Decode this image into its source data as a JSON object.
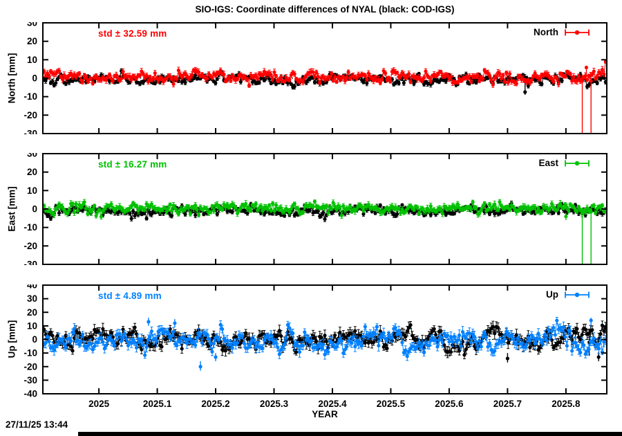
{
  "title": "SIO-IGS: Coordinate differences of NYAL (black: COD-IGS)",
  "timestamp": "27/11/25 13:44",
  "xlabel": "YEAR",
  "colors": {
    "north": "#ff0000",
    "east": "#00c000",
    "up": "#0080ff",
    "reference": "#000000",
    "frame": "#000000"
  },
  "chart_data": [
    {
      "type": "scatter-errorbar",
      "id": "north",
      "std_label": "std ± 32.59 mm",
      "std_mm": 32.59,
      "legend_label": "North",
      "ylabel": "North [mm]",
      "ylim": [
        -30,
        30
      ],
      "yticks": [
        -30,
        -20,
        -10,
        0,
        10,
        20,
        30
      ],
      "xlim": [
        2024.904,
        2025.87
      ],
      "xticks": [
        2025,
        2025.1,
        2025.2,
        2025.3,
        2025.4,
        2025.5,
        2025.6,
        2025.7,
        2025.8
      ],
      "zero_line": true,
      "series": [
        {
          "name": "COD-IGS",
          "color": "#000000",
          "seed": 101,
          "n": 335,
          "mean": -0.5,
          "std": 1.3,
          "rho": 0.4,
          "err": 1.1,
          "spike_prob": 0.015,
          "spike_scale": 2.2,
          "wave": [
            [
              0.4,
              31,
              0.7
            ]
          ],
          "outliers": [
            {
              "x": 2025.73,
              "y": -7.5,
              "lo": -9,
              "hi": -0.5
            }
          ]
        },
        {
          "name": "SIO-IGS",
          "color": "#ff0000",
          "seed": 202,
          "n": 335,
          "mean": 0.5,
          "std": 1.7,
          "rho": 0.35,
          "err": 1.3,
          "spike_prob": 0.02,
          "spike_scale": 2.1,
          "wave": [
            [
              0.4,
              23,
              2.1
            ]
          ],
          "outliers": [
            {
              "x": 2025.828,
              "y": -1.5,
              "lo": -45,
              "hi": 0.5
            },
            {
              "x": 2025.843,
              "y": -1.5,
              "lo": -45,
              "hi": 0.5
            },
            {
              "x": 2025.835,
              "y": 5.8,
              "lo": 1.5,
              "hi": 6.8
            }
          ]
        }
      ]
    },
    {
      "type": "scatter-errorbar",
      "id": "east",
      "std_label": "std ± 16.27 mm",
      "std_mm": 16.27,
      "legend_label": "East",
      "ylabel": "East [mm]",
      "ylim": [
        -30,
        30
      ],
      "yticks": [
        -30,
        -20,
        -10,
        0,
        10,
        20,
        30
      ],
      "xlim": [
        2024.904,
        2025.87
      ],
      "xticks": [
        2025,
        2025.1,
        2025.2,
        2025.3,
        2025.4,
        2025.5,
        2025.6,
        2025.7,
        2025.8
      ],
      "zero_line": true,
      "series": [
        {
          "name": "COD-IGS",
          "color": "#000000",
          "seed": 303,
          "n": 335,
          "mean": -0.8,
          "std": 1.3,
          "rho": 0.4,
          "err": 1.1,
          "spike_prob": 0.015,
          "spike_scale": 2.0,
          "wave": [
            [
              0.3,
              27,
              1.4
            ]
          ],
          "outliers": []
        },
        {
          "name": "SIO-IGS",
          "color": "#00c000",
          "seed": 404,
          "n": 335,
          "mean": 0.4,
          "std": 1.6,
          "rho": 0.35,
          "err": 1.3,
          "spike_prob": 0.02,
          "spike_scale": 2.0,
          "wave": [
            [
              0.4,
              19,
              0.3
            ]
          ],
          "outliers": [
            {
              "x": 2025.828,
              "y": -1.5,
              "lo": -45,
              "hi": 0.5
            },
            {
              "x": 2025.843,
              "y": -1.5,
              "lo": -45,
              "hi": 0.5
            },
            {
              "x": 2025.8,
              "y": -4,
              "lo": -6,
              "hi": -2
            }
          ]
        }
      ]
    },
    {
      "type": "scatter-errorbar",
      "id": "up",
      "std_label": "std ± 4.89 mm",
      "std_mm": 4.89,
      "legend_label": "Up",
      "ylabel": "Up [mm]",
      "ylim": [
        -40,
        40
      ],
      "yticks": [
        -40,
        -30,
        -20,
        -10,
        0,
        10,
        20,
        30,
        40
      ],
      "xlim": [
        2024.904,
        2025.87
      ],
      "xticks": [
        2025,
        2025.1,
        2025.2,
        2025.3,
        2025.4,
        2025.5,
        2025.6,
        2025.7,
        2025.8
      ],
      "xtick_text": [
        "2025",
        "2025.1",
        "2025.2",
        "2025.3",
        "2025.4",
        "2025.5",
        "2025.6",
        "2025.7",
        "2025.8"
      ],
      "zero_line": true,
      "series": [
        {
          "name": "COD-IGS",
          "color": "#000000",
          "seed": 505,
          "n": 335,
          "mean": 0,
          "std": 4.0,
          "rho": 0.55,
          "err": 3.2,
          "spike_prob": 0.03,
          "spike_scale": 2.0,
          "wave": [
            [
              1.8,
              47,
              0.8
            ],
            [
              1.0,
              13,
              2.2
            ]
          ],
          "outliers": [
            {
              "x": 2025.7,
              "y": -14,
              "lo": -17,
              "hi": -10
            },
            {
              "x": 2025.84,
              "y": -2,
              "lo": -12,
              "hi": 8
            },
            {
              "x": 2025.856,
              "y": -13,
              "lo": -16,
              "hi": -9
            }
          ]
        },
        {
          "name": "SIO-IGS",
          "color": "#0080ff",
          "seed": 606,
          "n": 335,
          "mean": -0.5,
          "std": 4.4,
          "rho": 0.55,
          "err": 3.0,
          "spike_prob": 0.03,
          "spike_scale": 2.2,
          "wave": [
            [
              2.2,
              39,
              2.0
            ],
            [
              1.2,
              11,
              0.5
            ]
          ],
          "outliers": [
            {
              "x": 2025.174,
              "y": -20,
              "lo": -23,
              "hi": -16
            },
            {
              "x": 2025.085,
              "y": 13,
              "lo": 10,
              "hi": 16
            },
            {
              "x": 2025.13,
              "y": 12,
              "lo": 9,
              "hi": 15
            },
            {
              "x": 2025.2,
              "y": -13,
              "lo": -16,
              "hi": -10
            },
            {
              "x": 2025.843,
              "y": 14,
              "lo": 9,
              "hi": 16
            }
          ]
        }
      ]
    }
  ]
}
